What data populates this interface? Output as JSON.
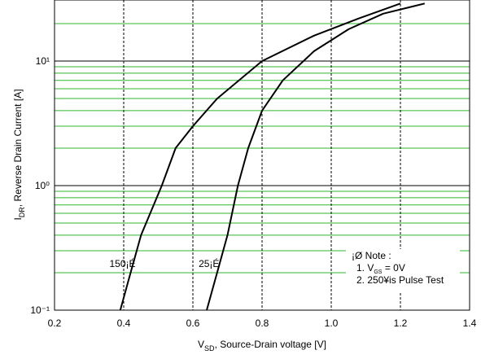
{
  "chart_data": {
    "type": "line",
    "x_label": {
      "main": "V",
      "sub": "SD",
      "rest": ", Source-Drain voltage [V]"
    },
    "y_label": {
      "main": "I",
      "sub": "DR",
      "rest": ", Reverse Drain Current [A]"
    },
    "xlim": [
      0.2,
      1.4
    ],
    "xticks": [
      0.2,
      0.4,
      0.6,
      0.8,
      {
        "value": 1,
        "label": "1.0"
      },
      1.2,
      1.4
    ],
    "ylim": [
      0.1,
      30
    ],
    "log_y": true,
    "yticks": [
      {
        "value": 0.1,
        "label": "10⁻¹"
      },
      {
        "value": 1,
        "label": "10⁰"
      },
      {
        "value": 10,
        "label": "10¹"
      }
    ],
    "y_minor_gridlines": [
      0.2,
      0.3,
      0.4,
      0.5,
      0.6,
      0.7,
      0.8,
      0.9,
      2,
      3,
      4,
      5,
      6,
      7,
      8,
      9,
      20
    ],
    "grid": true,
    "series": [
      {
        "name": "150¡É",
        "color": "#000000",
        "x": [
          0.39,
          0.42,
          0.45,
          0.51,
          0.55,
          0.6,
          0.67,
          0.8,
          0.95,
          1.08,
          1.2
        ],
        "values": [
          0.1,
          0.2,
          0.4,
          1,
          2,
          3,
          5,
          10,
          16,
          22,
          29
        ]
      },
      {
        "name": "25¡É",
        "color": "#000000",
        "x": [
          0.64,
          0.67,
          0.7,
          0.73,
          0.76,
          0.8,
          0.86,
          0.95,
          1.05,
          1.15,
          1.27
        ],
        "values": [
          0.1,
          0.2,
          0.4,
          1,
          2,
          4,
          7,
          12,
          18,
          24,
          29
        ]
      }
    ],
    "note": {
      "title": "¡Ø Note :",
      "line1": {
        "main": "1. V",
        "sub": "GS",
        "rest": " = 0V"
      },
      "line2": "2. 250¥is Pulse Test"
    }
  }
}
